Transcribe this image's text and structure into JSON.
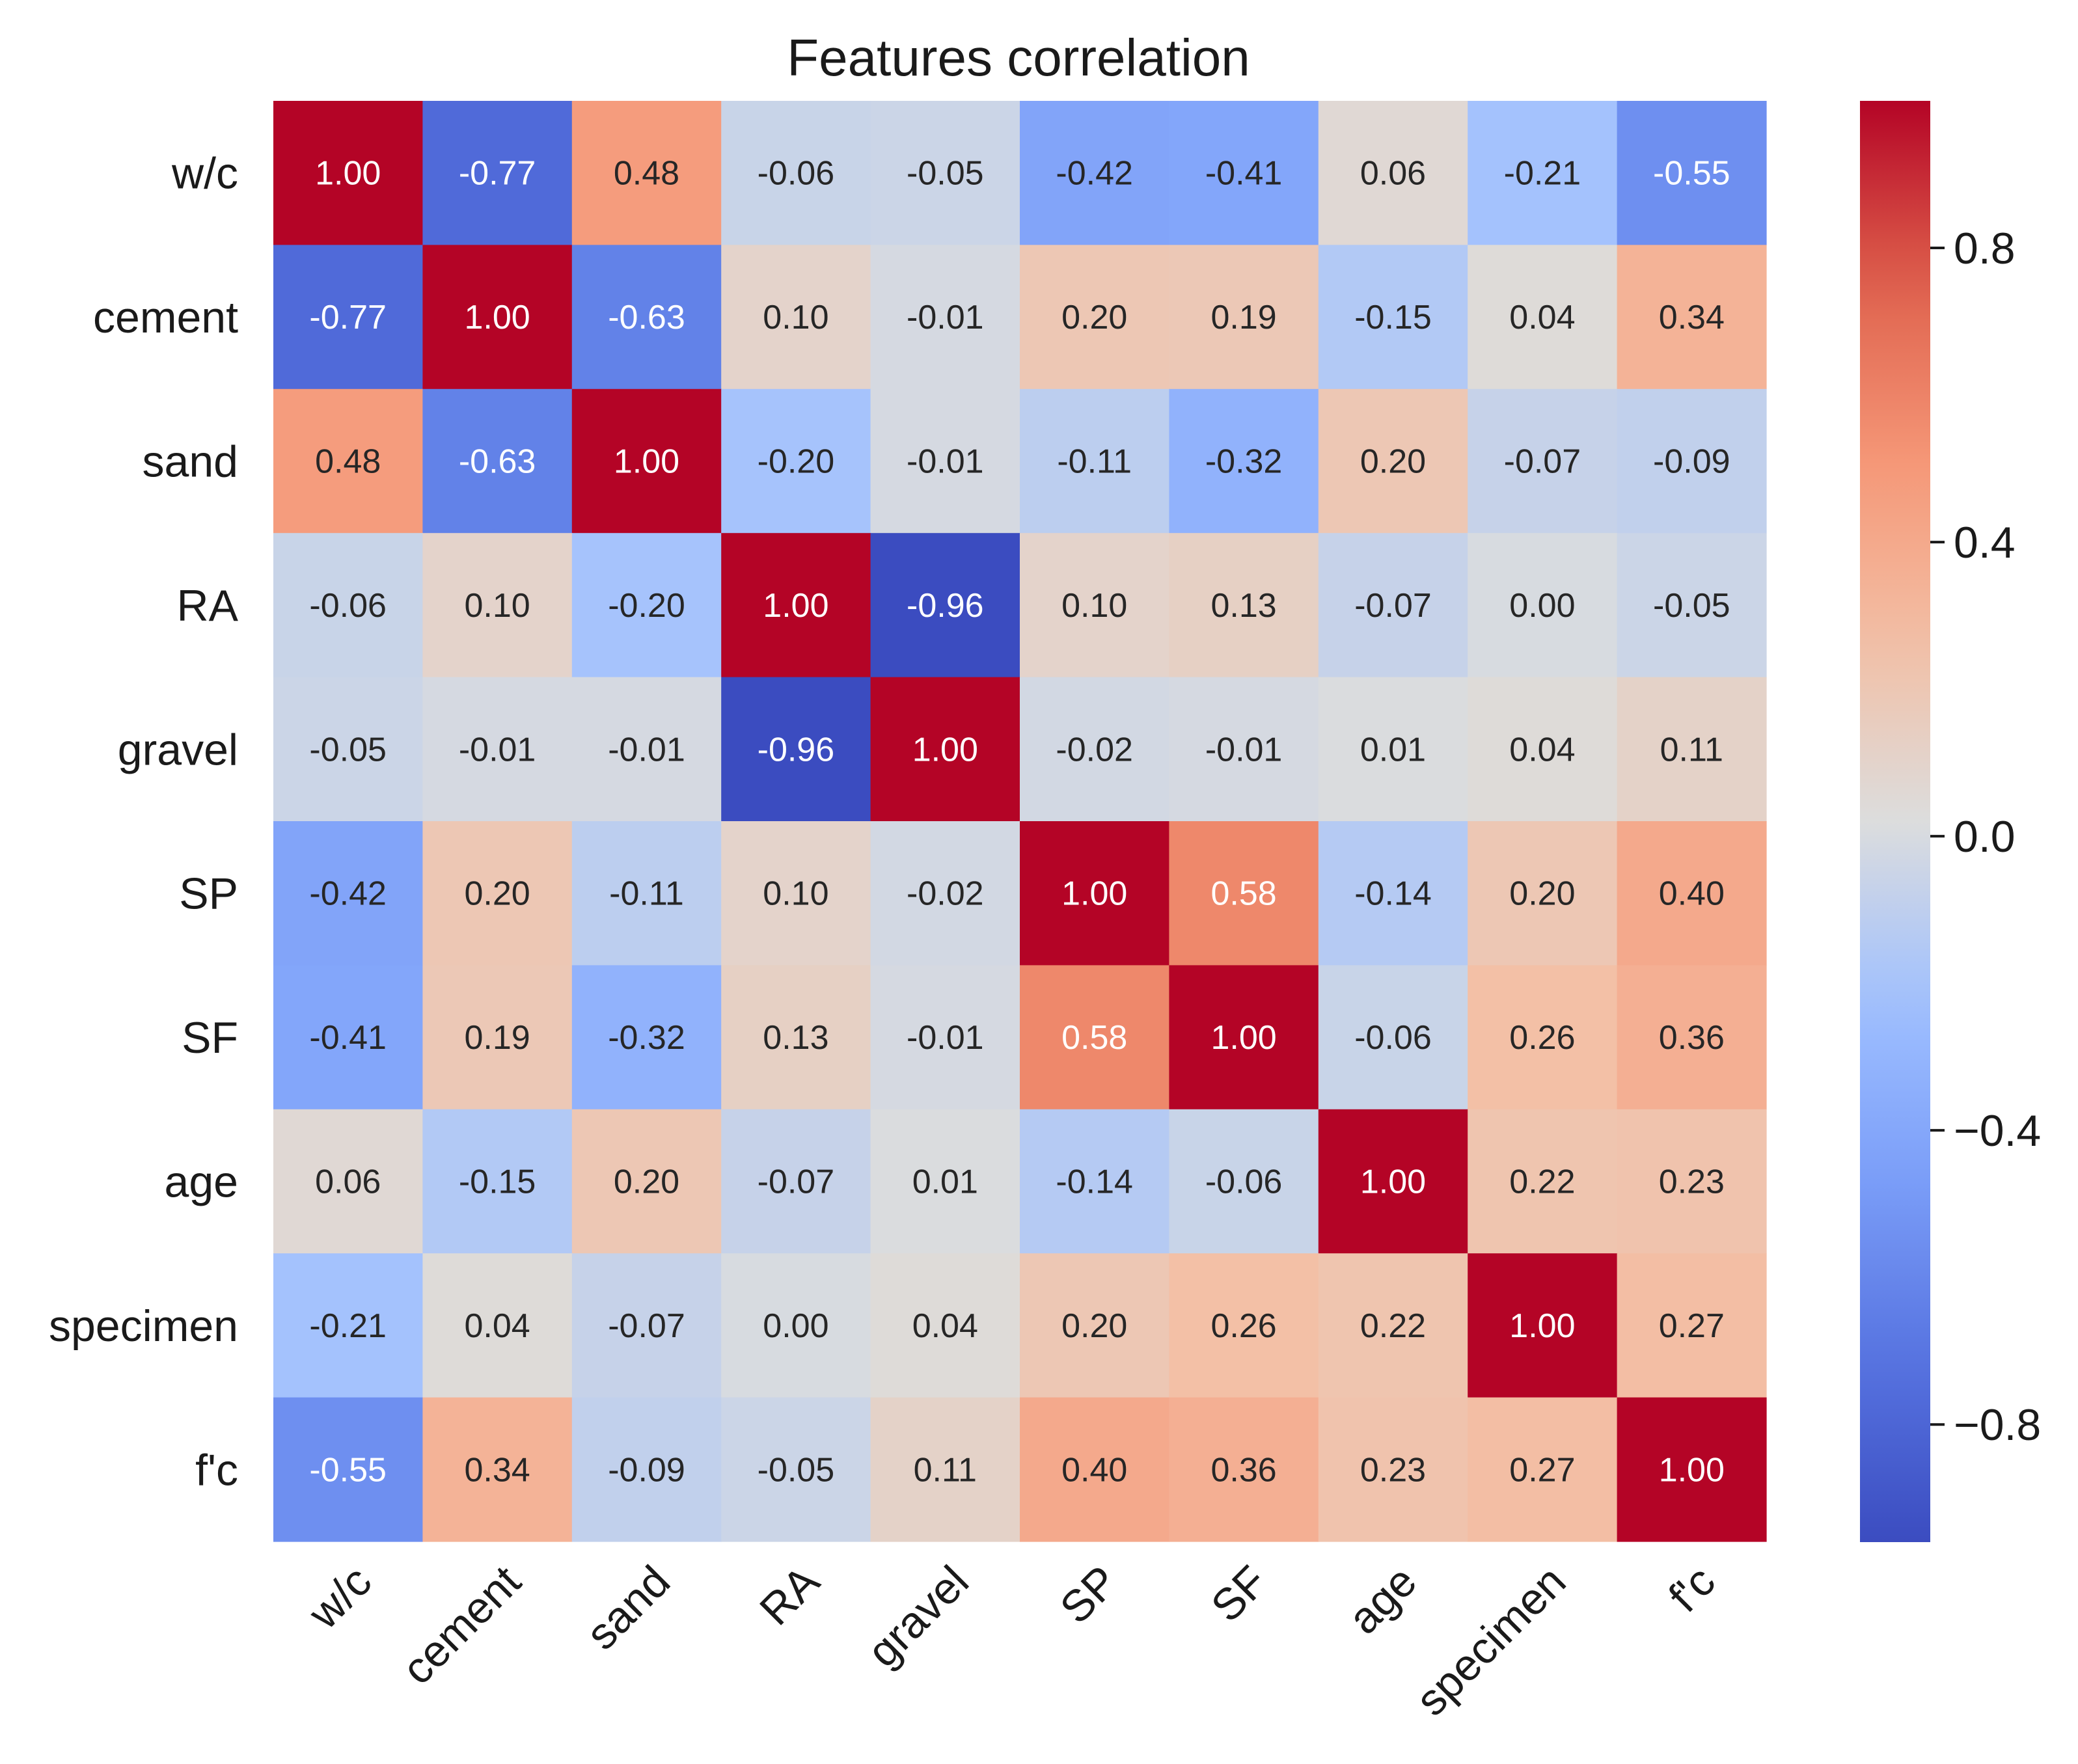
{
  "chart_data": {
    "type": "heatmap",
    "title": "Features correlation",
    "xlabel": "",
    "ylabel": "",
    "row_labels": [
      "w/c",
      "cement",
      "sand",
      "RA",
      "gravel",
      "SP",
      "SF",
      "age",
      "specimen",
      "f'c"
    ],
    "col_labels": [
      "w/c",
      "cement",
      "sand",
      "RA",
      "gravel",
      "SP",
      "SF",
      "age",
      "specimen",
      "f'c"
    ],
    "values": [
      [
        1.0,
        -0.77,
        0.48,
        -0.06,
        -0.05,
        -0.42,
        -0.41,
        0.06,
        -0.21,
        -0.55
      ],
      [
        -0.77,
        1.0,
        -0.63,
        0.1,
        -0.01,
        0.2,
        0.19,
        -0.15,
        0.04,
        0.34
      ],
      [
        0.48,
        -0.63,
        1.0,
        -0.2,
        -0.01,
        -0.11,
        -0.32,
        0.2,
        -0.07,
        -0.09
      ],
      [
        -0.06,
        0.1,
        -0.2,
        1.0,
        -0.96,
        0.1,
        0.13,
        -0.07,
        0.0,
        -0.05
      ],
      [
        -0.05,
        -0.01,
        -0.01,
        -0.96,
        1.0,
        -0.02,
        -0.01,
        0.01,
        0.04,
        0.11
      ],
      [
        -0.42,
        0.2,
        -0.11,
        0.1,
        -0.02,
        1.0,
        0.58,
        -0.14,
        0.2,
        0.4
      ],
      [
        -0.41,
        0.19,
        -0.32,
        0.13,
        -0.01,
        0.58,
        1.0,
        -0.06,
        0.26,
        0.36
      ],
      [
        0.06,
        -0.15,
        0.2,
        -0.07,
        0.01,
        -0.14,
        -0.06,
        1.0,
        0.22,
        0.23
      ],
      [
        -0.21,
        0.04,
        -0.07,
        0.0,
        0.04,
        0.2,
        0.26,
        0.22,
        1.0,
        0.27
      ],
      [
        -0.55,
        0.34,
        -0.09,
        -0.05,
        0.11,
        0.4,
        0.36,
        0.23,
        0.27,
        1.0
      ]
    ],
    "value_format": "0.00",
    "colormap": "coolwarm",
    "color_range": [
      -0.96,
      1.0
    ],
    "colorbar": {
      "ticks": [
        0.8,
        0.4,
        0.0,
        -0.4,
        -0.8
      ],
      "tick_labels": [
        "0.8",
        "0.4",
        "0.0",
        "−0.4",
        "−0.8"
      ],
      "placement": "right"
    },
    "grid": false
  }
}
